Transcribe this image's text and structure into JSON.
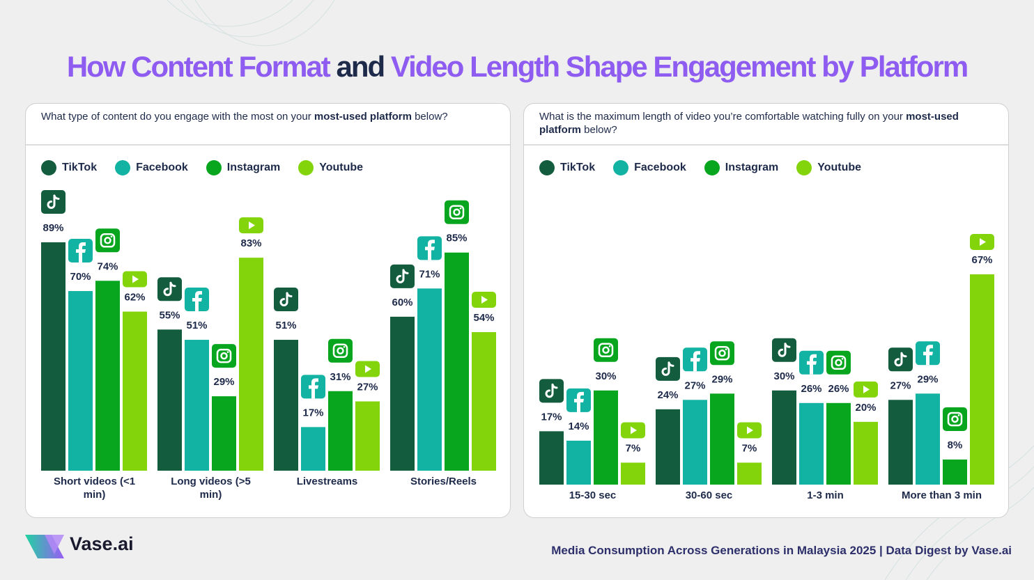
{
  "header": {
    "title_parts": [
      "How Content Format",
      "and",
      "Video Length Shape Engagement by Platform"
    ]
  },
  "chart_data": [
    {
      "type": "bar",
      "question_parts": [
        "What type of content do you engage with the most on your ",
        "most-used platform",
        " below?"
      ],
      "categories": [
        "Short videos (<1 min)",
        "Long videos (>5 min)",
        "Livestreams",
        "Stories/Reels"
      ],
      "series": [
        {
          "name": "TikTok",
          "color": "#135c3e",
          "values": [
            89,
            55,
            51,
            60
          ],
          "value_labels": [
            "89%",
            "55%",
            "51%",
            "60%"
          ]
        },
        {
          "name": "Facebook",
          "color": "#12b3a2",
          "values": [
            70,
            51,
            17,
            71
          ],
          "value_labels": [
            "70%",
            "51%",
            "17%",
            "71%"
          ]
        },
        {
          "name": "Instagram",
          "color": "#08a61f",
          "values": [
            74,
            29,
            31,
            85
          ],
          "value_labels": [
            "74%",
            "29%",
            "31%",
            "85%"
          ]
        },
        {
          "name": "Youtube",
          "color": "#84d40c",
          "values": [
            62,
            83,
            27,
            54
          ],
          "value_labels": [
            "62%",
            "83%",
            "27%",
            "54%"
          ]
        }
      ]
    },
    {
      "type": "bar",
      "question_parts": [
        "What is the maximum length of video you’re comfortable watching fully on your ",
        "most-used platform",
        " below?"
      ],
      "categories": [
        "15-30 sec",
        "30-60 sec",
        "1-3 min",
        "More than 3 min"
      ],
      "series": [
        {
          "name": "TikTok",
          "color": "#135c3e",
          "values": [
            17,
            24,
            30,
            27
          ],
          "value_labels": [
            "17%",
            "24%",
            "30%",
            "27%"
          ]
        },
        {
          "name": "Facebook",
          "color": "#12b3a2",
          "values": [
            14,
            27,
            26,
            29
          ],
          "value_labels": [
            "14%",
            "27%",
            "26%",
            "29%"
          ]
        },
        {
          "name": "Instagram",
          "color": "#08a61f",
          "values": [
            30,
            29,
            26,
            8
          ],
          "value_labels": [
            "30%",
            "29%",
            "26%",
            "8%"
          ]
        },
        {
          "name": "Youtube",
          "color": "#84d40c",
          "values": [
            7,
            7,
            20,
            67
          ],
          "value_labels": [
            "7%",
            "7%",
            "20%",
            "67%"
          ]
        }
      ]
    }
  ],
  "footer": {
    "brand": "Vase.ai",
    "source": "Media Consumption Across Generations in Malaysia 2025 | Data Digest by Vase.ai"
  }
}
